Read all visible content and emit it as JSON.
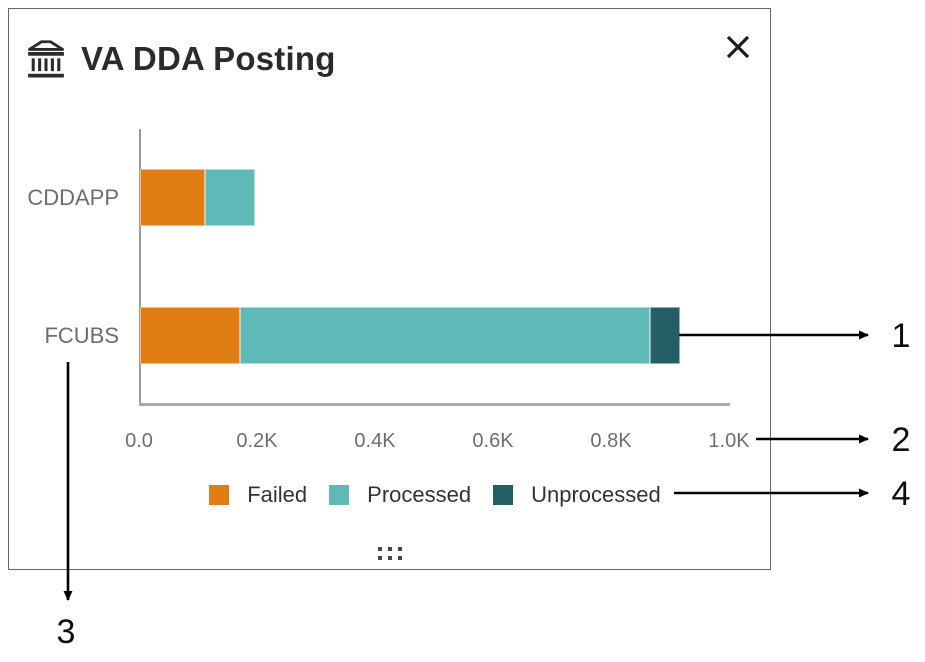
{
  "modal": {
    "title": "VA DDA Posting",
    "title_icon": "bank-icon",
    "close_icon": "close-icon",
    "drag_icon": "drag-handle-icon"
  },
  "chart_data": {
    "type": "bar",
    "orientation": "horizontal",
    "stacked": true,
    "title": "VA DDA Posting",
    "categories": [
      "CDDAPP",
      "FCUBS"
    ],
    "series": [
      {
        "name": "Failed",
        "color": "#E07D15",
        "values": [
          110,
          170
        ]
      },
      {
        "name": "Processed",
        "color": "#5FBAB7",
        "values": [
          85,
          695
        ]
      },
      {
        "name": "Unprocessed",
        "color": "#265E66",
        "values": [
          0,
          50
        ]
      }
    ],
    "x_ticks": [
      "0.0",
      "0.2K",
      "0.4K",
      "0.6K",
      "0.8K",
      "1.0K"
    ],
    "xlim": [
      0,
      1000
    ],
    "xlabel": "",
    "ylabel": "",
    "grid": false,
    "legend_position": "bottom",
    "axis_color": "#ababab",
    "text_color": "#6d6d6d"
  },
  "annotations": {
    "labels": [
      "1",
      "2",
      "3",
      "4"
    ]
  }
}
